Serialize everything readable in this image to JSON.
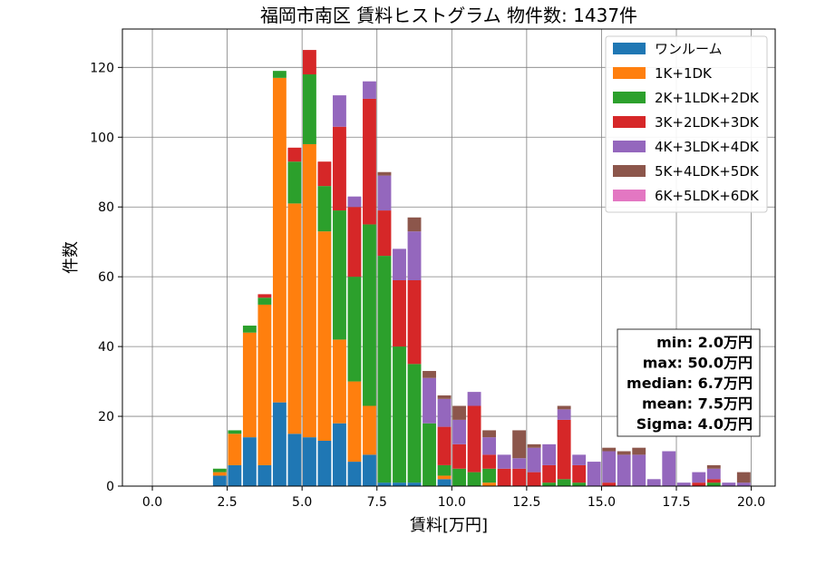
{
  "chart_data": {
    "type": "bar",
    "title": "福岡市南区 賃料ヒストグラム 物件数: 1437件",
    "xlabel": "賃料[万円]",
    "ylabel": "件数",
    "xlim": [
      -1.0,
      20.8
    ],
    "ylim": [
      0,
      131
    ],
    "xticks": [
      0.0,
      2.5,
      5.0,
      7.5,
      10.0,
      12.5,
      15.0,
      17.5,
      20.0
    ],
    "xtick_labels": [
      "0.0",
      "2.5",
      "5.0",
      "7.5",
      "10.0",
      "12.5",
      "15.0",
      "17.5",
      "20.0"
    ],
    "yticks": [
      0,
      20,
      40,
      60,
      80,
      100,
      120
    ],
    "ytick_labels": [
      "0",
      "20",
      "40",
      "60",
      "80",
      "100",
      "120"
    ],
    "grid": true,
    "legend_position": "top-right",
    "bin_width": 0.5,
    "bins": [
      2.0,
      2.5,
      3.0,
      3.5,
      4.0,
      4.5,
      5.0,
      5.5,
      6.0,
      6.5,
      7.0,
      7.5,
      8.0,
      8.5,
      9.0,
      9.5,
      10.0,
      10.5,
      11.0,
      11.5,
      12.0,
      12.5,
      13.0,
      13.5,
      14.0,
      14.5,
      15.0,
      15.5,
      16.0,
      16.5,
      17.0,
      17.5,
      18.0,
      18.5,
      19.0,
      19.5
    ],
    "series": [
      {
        "name": "ワンルーム",
        "color": "#1f77b4",
        "values": [
          3,
          6,
          14,
          6,
          24,
          15,
          14,
          13,
          18,
          7,
          9,
          1,
          1,
          1,
          0,
          2,
          0,
          0,
          0,
          0,
          0,
          0,
          0,
          0,
          0,
          0,
          0,
          0,
          0,
          0,
          0,
          0,
          0,
          0,
          0,
          0
        ]
      },
      {
        "name": "1K+1DK",
        "color": "#ff7f0e",
        "values": [
          1,
          9,
          30,
          46,
          93,
          66,
          84,
          60,
          24,
          23,
          14,
          0,
          0,
          0,
          0,
          1,
          0,
          0,
          1,
          0,
          0,
          0,
          0,
          0,
          0,
          0,
          0,
          0,
          0,
          0,
          0,
          0,
          0,
          0,
          0,
          0
        ]
      },
      {
        "name": "2K+1LDK+2DK",
        "color": "#2ca02c",
        "values": [
          1,
          1,
          2,
          2,
          2,
          12,
          20,
          13,
          37,
          30,
          52,
          65,
          39,
          34,
          18,
          3,
          5,
          4,
          4,
          0,
          0,
          0,
          1,
          2,
          1,
          0,
          0,
          0,
          0,
          0,
          0,
          0,
          0,
          1,
          0,
          0
        ]
      },
      {
        "name": "3K+2LDK+3DK",
        "color": "#d62728",
        "values": [
          0,
          0,
          0,
          1,
          0,
          4,
          7,
          7,
          24,
          20,
          36,
          13,
          19,
          24,
          0,
          11,
          7,
          19,
          4,
          5,
          5,
          4,
          5,
          17,
          5,
          0,
          1,
          0,
          0,
          0,
          0,
          0,
          1,
          1,
          0,
          0
        ]
      },
      {
        "name": "4K+3LDK+4DK",
        "color": "#9467bd",
        "values": [
          0,
          0,
          0,
          0,
          0,
          0,
          0,
          0,
          9,
          3,
          5,
          10,
          9,
          14,
          13,
          8,
          7,
          4,
          5,
          4,
          3,
          7,
          6,
          3,
          3,
          7,
          9,
          9,
          9,
          2,
          10,
          1,
          3,
          3,
          1,
          1
        ]
      },
      {
        "name": "5K+4LDK+5DK",
        "color": "#8c564b",
        "values": [
          0,
          0,
          0,
          0,
          0,
          0,
          0,
          0,
          0,
          0,
          0,
          1,
          0,
          4,
          2,
          1,
          4,
          0,
          2,
          0,
          8,
          1,
          0,
          1,
          0,
          0,
          1,
          1,
          2,
          0,
          0,
          0,
          0,
          1,
          0,
          3
        ]
      },
      {
        "name": "6K+5LDK+6DK",
        "color": "#e377c2",
        "values": [
          0,
          0,
          0,
          0,
          0,
          0,
          0,
          0,
          0,
          0,
          0,
          0,
          0,
          0,
          0,
          0,
          0,
          0,
          0,
          0,
          0,
          0,
          0,
          0,
          0,
          0,
          0,
          0,
          0,
          0,
          0,
          0,
          0,
          0,
          0,
          0
        ]
      }
    ],
    "stats": [
      "min: 2.0万円",
      "max: 50.0万円",
      "median: 6.7万円",
      "mean: 7.5万円",
      "Sigma: 4.0万円"
    ]
  }
}
